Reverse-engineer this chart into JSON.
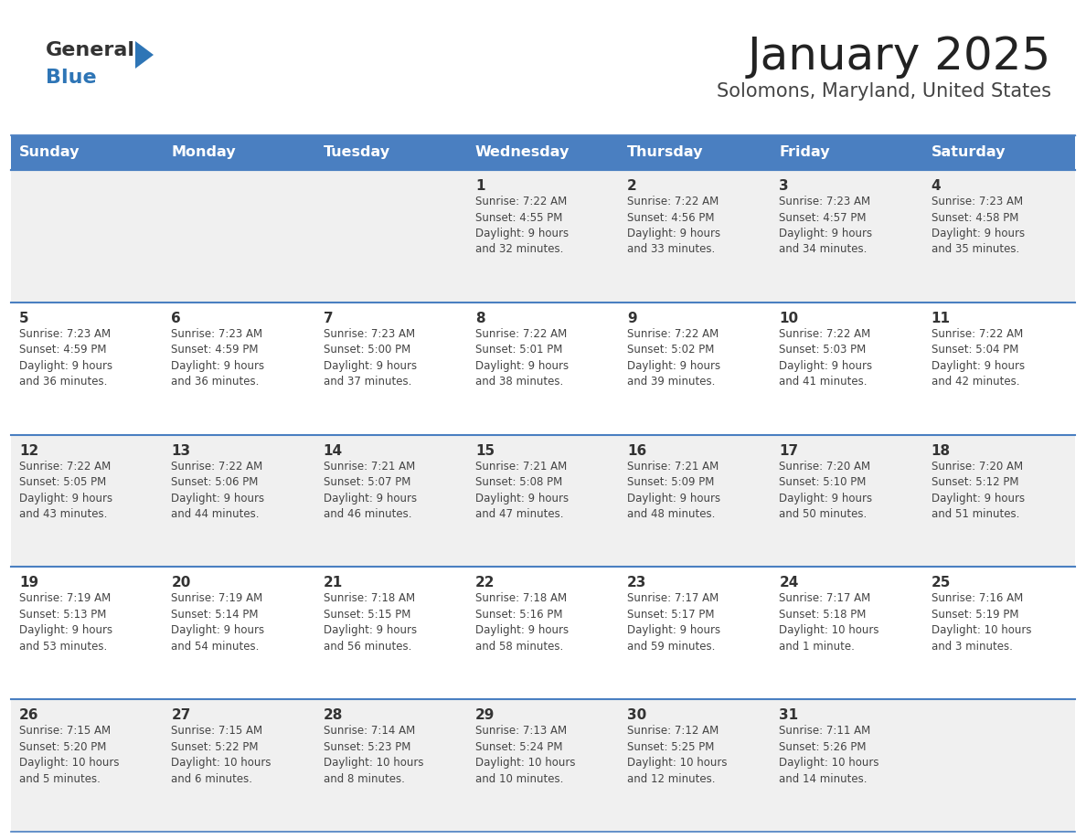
{
  "title": "January 2025",
  "subtitle": "Solomons, Maryland, United States",
  "logo_text1": "General",
  "logo_text2": "Blue",
  "header_bg": "#4A7FC1",
  "header_text_color": "#FFFFFF",
  "cell_bg_odd": "#F0F0F0",
  "cell_bg_even": "#FFFFFF",
  "day_number_color": "#333333",
  "cell_text_color": "#444444",
  "separator_color": "#4A7FC1",
  "logo_gray": "#333333",
  "logo_blue": "#2E75B6",
  "triangle_blue": "#2E75B6",
  "title_color": "#222222",
  "subtitle_color": "#444444",
  "days_of_week": [
    "Sunday",
    "Monday",
    "Tuesday",
    "Wednesday",
    "Thursday",
    "Friday",
    "Saturday"
  ],
  "weeks": [
    [
      {
        "day": "",
        "info": ""
      },
      {
        "day": "",
        "info": ""
      },
      {
        "day": "",
        "info": ""
      },
      {
        "day": "1",
        "info": "Sunrise: 7:22 AM\nSunset: 4:55 PM\nDaylight: 9 hours\nand 32 minutes."
      },
      {
        "day": "2",
        "info": "Sunrise: 7:22 AM\nSunset: 4:56 PM\nDaylight: 9 hours\nand 33 minutes."
      },
      {
        "day": "3",
        "info": "Sunrise: 7:23 AM\nSunset: 4:57 PM\nDaylight: 9 hours\nand 34 minutes."
      },
      {
        "day": "4",
        "info": "Sunrise: 7:23 AM\nSunset: 4:58 PM\nDaylight: 9 hours\nand 35 minutes."
      }
    ],
    [
      {
        "day": "5",
        "info": "Sunrise: 7:23 AM\nSunset: 4:59 PM\nDaylight: 9 hours\nand 36 minutes."
      },
      {
        "day": "6",
        "info": "Sunrise: 7:23 AM\nSunset: 4:59 PM\nDaylight: 9 hours\nand 36 minutes."
      },
      {
        "day": "7",
        "info": "Sunrise: 7:23 AM\nSunset: 5:00 PM\nDaylight: 9 hours\nand 37 minutes."
      },
      {
        "day": "8",
        "info": "Sunrise: 7:22 AM\nSunset: 5:01 PM\nDaylight: 9 hours\nand 38 minutes."
      },
      {
        "day": "9",
        "info": "Sunrise: 7:22 AM\nSunset: 5:02 PM\nDaylight: 9 hours\nand 39 minutes."
      },
      {
        "day": "10",
        "info": "Sunrise: 7:22 AM\nSunset: 5:03 PM\nDaylight: 9 hours\nand 41 minutes."
      },
      {
        "day": "11",
        "info": "Sunrise: 7:22 AM\nSunset: 5:04 PM\nDaylight: 9 hours\nand 42 minutes."
      }
    ],
    [
      {
        "day": "12",
        "info": "Sunrise: 7:22 AM\nSunset: 5:05 PM\nDaylight: 9 hours\nand 43 minutes."
      },
      {
        "day": "13",
        "info": "Sunrise: 7:22 AM\nSunset: 5:06 PM\nDaylight: 9 hours\nand 44 minutes."
      },
      {
        "day": "14",
        "info": "Sunrise: 7:21 AM\nSunset: 5:07 PM\nDaylight: 9 hours\nand 46 minutes."
      },
      {
        "day": "15",
        "info": "Sunrise: 7:21 AM\nSunset: 5:08 PM\nDaylight: 9 hours\nand 47 minutes."
      },
      {
        "day": "16",
        "info": "Sunrise: 7:21 AM\nSunset: 5:09 PM\nDaylight: 9 hours\nand 48 minutes."
      },
      {
        "day": "17",
        "info": "Sunrise: 7:20 AM\nSunset: 5:10 PM\nDaylight: 9 hours\nand 50 minutes."
      },
      {
        "day": "18",
        "info": "Sunrise: 7:20 AM\nSunset: 5:12 PM\nDaylight: 9 hours\nand 51 minutes."
      }
    ],
    [
      {
        "day": "19",
        "info": "Sunrise: 7:19 AM\nSunset: 5:13 PM\nDaylight: 9 hours\nand 53 minutes."
      },
      {
        "day": "20",
        "info": "Sunrise: 7:19 AM\nSunset: 5:14 PM\nDaylight: 9 hours\nand 54 minutes."
      },
      {
        "day": "21",
        "info": "Sunrise: 7:18 AM\nSunset: 5:15 PM\nDaylight: 9 hours\nand 56 minutes."
      },
      {
        "day": "22",
        "info": "Sunrise: 7:18 AM\nSunset: 5:16 PM\nDaylight: 9 hours\nand 58 minutes."
      },
      {
        "day": "23",
        "info": "Sunrise: 7:17 AM\nSunset: 5:17 PM\nDaylight: 9 hours\nand 59 minutes."
      },
      {
        "day": "24",
        "info": "Sunrise: 7:17 AM\nSunset: 5:18 PM\nDaylight: 10 hours\nand 1 minute."
      },
      {
        "day": "25",
        "info": "Sunrise: 7:16 AM\nSunset: 5:19 PM\nDaylight: 10 hours\nand 3 minutes."
      }
    ],
    [
      {
        "day": "26",
        "info": "Sunrise: 7:15 AM\nSunset: 5:20 PM\nDaylight: 10 hours\nand 5 minutes."
      },
      {
        "day": "27",
        "info": "Sunrise: 7:15 AM\nSunset: 5:22 PM\nDaylight: 10 hours\nand 6 minutes."
      },
      {
        "day": "28",
        "info": "Sunrise: 7:14 AM\nSunset: 5:23 PM\nDaylight: 10 hours\nand 8 minutes."
      },
      {
        "day": "29",
        "info": "Sunrise: 7:13 AM\nSunset: 5:24 PM\nDaylight: 10 hours\nand 10 minutes."
      },
      {
        "day": "30",
        "info": "Sunrise: 7:12 AM\nSunset: 5:25 PM\nDaylight: 10 hours\nand 12 minutes."
      },
      {
        "day": "31",
        "info": "Sunrise: 7:11 AM\nSunset: 5:26 PM\nDaylight: 10 hours\nand 14 minutes."
      },
      {
        "day": "",
        "info": ""
      }
    ]
  ]
}
